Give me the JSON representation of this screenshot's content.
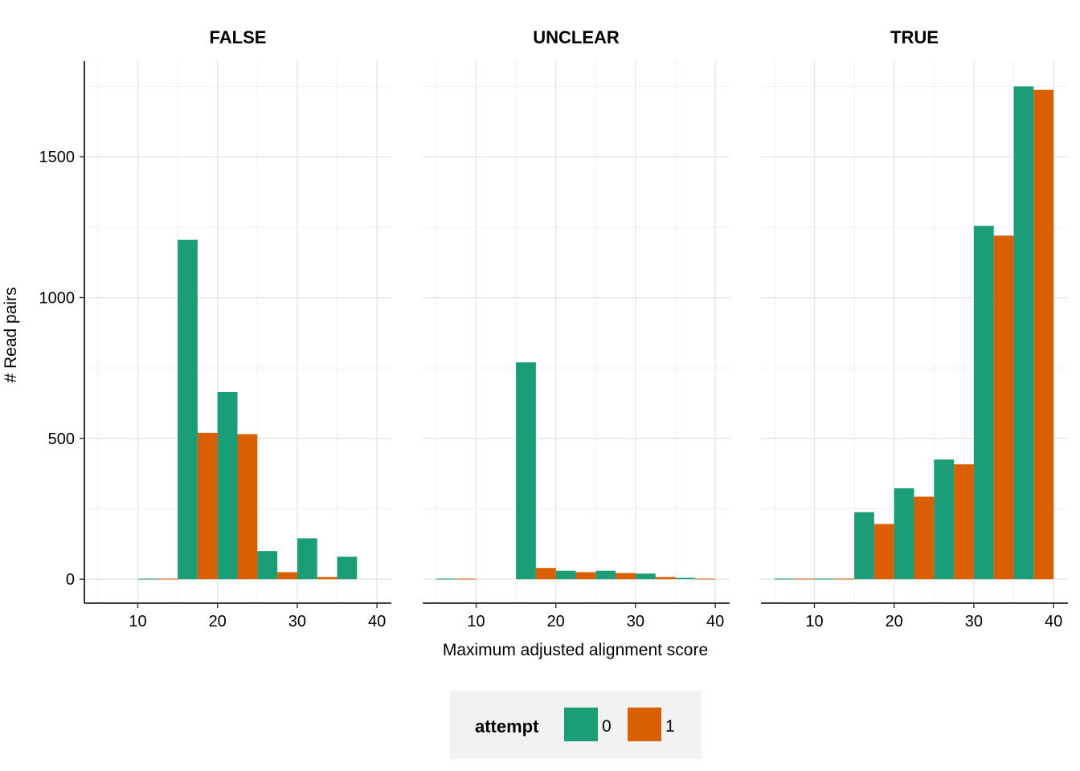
{
  "chart_data": {
    "type": "bar",
    "layout": "faceted histogram, 3 panels side by side with shared y axis",
    "facets": [
      "FALSE",
      "UNCLEAR",
      "TRUE"
    ],
    "xlabel": "Maximum adjusted alignment score",
    "ylabel": "# Read pairs",
    "xlim": [
      3.3,
      41.8
    ],
    "ylim": [
      -85,
      1840
    ],
    "x_ticks": [
      10,
      20,
      30,
      40
    ],
    "y_ticks": [
      0,
      500,
      1000,
      1500
    ],
    "grid": true,
    "legend": {
      "title": "attempt",
      "position": "bottom",
      "entries": [
        {
          "label": "0",
          "color": "#1B9E77"
        },
        {
          "label": "1",
          "color": "#D95F02"
        }
      ]
    },
    "bin_centers": [
      7.5,
      12.5,
      17.5,
      22.5,
      27.5,
      32.5,
      37.5
    ],
    "bin_width": 5,
    "panels": [
      {
        "facet": "FALSE",
        "series": [
          {
            "name": "0",
            "values": [
              0,
              2,
              1205,
              665,
              100,
              145,
              80
            ]
          },
          {
            "name": "1",
            "values": [
              0,
              2,
              520,
              515,
              25,
              8,
              0
            ]
          }
        ]
      },
      {
        "facet": "UNCLEAR",
        "series": [
          {
            "name": "0",
            "values": [
              2,
              0,
              770,
              30,
              30,
              20,
              5
            ]
          },
          {
            "name": "1",
            "values": [
              2,
              0,
              40,
              25,
              22,
              8,
              2
            ]
          }
        ]
      },
      {
        "facet": "TRUE",
        "series": [
          {
            "name": "0",
            "values": [
              2,
              2,
              238,
              323,
              425,
              1255,
              1750
            ]
          },
          {
            "name": "1",
            "values": [
              2,
              2,
              196,
              293,
              408,
              1220,
              1738
            ]
          }
        ]
      }
    ]
  }
}
